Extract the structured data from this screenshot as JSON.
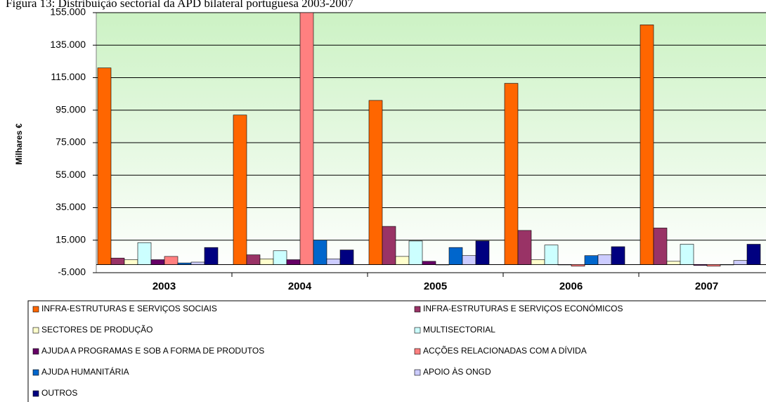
{
  "chart_data": {
    "type": "bar",
    "title": "Figura 13: Distribuição sectorial da APD bilateral portuguesa 2003-2007",
    "ylabel": "Milhares €",
    "categories": [
      "2003",
      "2004",
      "2005",
      "2006",
      "2007"
    ],
    "series": [
      {
        "name": "INFRA-ESTRUTURAS E SERVIÇOS SOCIAIS",
        "color": "#ff6600",
        "values": [
          121000,
          92000,
          101000,
          111500,
          147500
        ]
      },
      {
        "name": "INFRA-ESTRUTURAS E SERVIÇOS ECONÓMICOS",
        "color": "#993366",
        "values": [
          4000,
          6000,
          23500,
          21000,
          22500
        ]
      },
      {
        "name": "SECTORES DE PRODUÇÃO",
        "color": "#ffffcc",
        "values": [
          3000,
          3500,
          5000,
          3000,
          2000
        ]
      },
      {
        "name": "MULTISECTORIAL",
        "color": "#ccffff",
        "values": [
          13500,
          8500,
          14500,
          12000,
          12500
        ]
      },
      {
        "name": "AJUDA A PROGRAMAS E SOB A FORMA DE PRODUTOS",
        "color": "#660066",
        "values": [
          3000,
          3000,
          2000,
          0,
          -500
        ]
      },
      {
        "name": "ACÇÕES RELACIONADAS COM A DÍVIDA",
        "color": "#ff8080",
        "values": [
          5000,
          155000,
          0,
          -1000,
          -1000
        ]
      },
      {
        "name": "AJUDA HUMANITÁRIA",
        "color": "#0066cc",
        "values": [
          1000,
          15000,
          10500,
          5500,
          0
        ]
      },
      {
        "name": "APOIO ÀS ONGD",
        "color": "#ccccff",
        "values": [
          1500,
          3500,
          5500,
          6000,
          2500
        ]
      },
      {
        "name": "OUTROS",
        "color": "#000080",
        "values": [
          10500,
          9000,
          14500,
          11000,
          12500
        ]
      }
    ],
    "ylim": [
      -5000,
      155000
    ],
    "yticks": [
      {
        "value": -5000,
        "label": "-5.000"
      },
      {
        "value": 15000,
        "label": "15.000"
      },
      {
        "value": 35000,
        "label": "35.000"
      },
      {
        "value": 55000,
        "label": "55.000"
      },
      {
        "value": 75000,
        "label": "75.000"
      },
      {
        "value": 95000,
        "label": "95.000"
      },
      {
        "value": 115000,
        "label": "115.000"
      },
      {
        "value": 135000,
        "label": "135.000"
      },
      {
        "value": 155000,
        "label": "155.000"
      }
    ],
    "grid": true
  }
}
